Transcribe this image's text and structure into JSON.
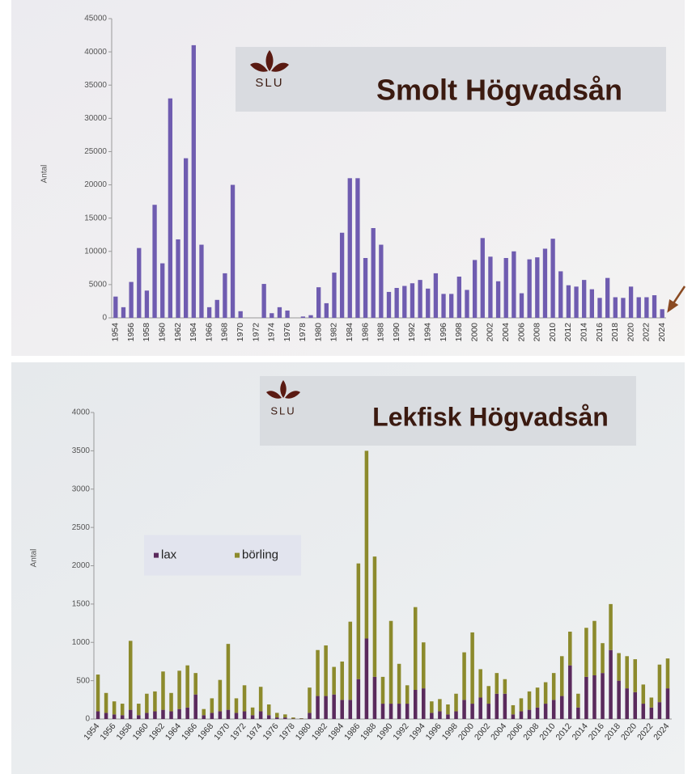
{
  "chart_data": [
    {
      "type": "bar",
      "title": "Smolt Högvadsån",
      "logo": "SLU",
      "ylabel": "Antal",
      "color": "#6f5cb0",
      "categories": [
        "1954",
        null,
        "1956",
        null,
        "1958",
        null,
        "1960",
        null,
        "1962",
        null,
        "1964",
        null,
        "1966",
        null,
        "1968",
        null,
        "1970",
        null,
        "1972",
        null,
        "1974",
        null,
        "1976",
        null,
        "1978",
        null,
        "1980",
        null,
        "1982",
        null,
        "1984",
        null,
        "1986",
        null,
        "1988",
        null,
        "1990",
        null,
        "1992",
        null,
        "1994",
        null,
        "1996",
        null,
        "1998",
        null,
        "2000",
        null,
        "2002",
        null,
        "2004",
        null,
        "2006",
        null,
        "2008",
        null,
        "2010",
        null,
        "2012",
        null,
        "2014",
        null,
        "2016",
        null,
        "2018",
        null,
        "2020",
        null,
        "2022",
        null,
        "2024"
      ],
      "values": [
        3200,
        1600,
        5400,
        10500,
        4100,
        17000,
        8200,
        33000,
        11800,
        24000,
        41000,
        11000,
        1600,
        2700,
        6700,
        20000,
        1000,
        0,
        0,
        5100,
        700,
        1600,
        1100,
        0,
        200,
        400,
        4600,
        2200,
        6800,
        12800,
        21000,
        21000,
        9000,
        13500,
        11000,
        3900,
        4500,
        4800,
        5200,
        5700,
        4400,
        6700,
        3600,
        3600,
        6200,
        4200,
        8700,
        12000,
        9200,
        5500,
        9000,
        10000,
        3700,
        8800,
        9100,
        10400,
        11900,
        7000,
        4900,
        4700,
        5700,
        4300,
        3000,
        6000,
        3100,
        3000,
        4700,
        3100,
        3100,
        3400,
        1300
      ],
      "ylim": [
        0,
        45000
      ],
      "yticks": [
        0,
        5000,
        10000,
        15000,
        20000,
        25000,
        30000,
        35000,
        40000,
        45000
      ]
    },
    {
      "type": "bar",
      "stacked": true,
      "title": "Lekfisk Högvadsån",
      "logo": "SLU",
      "ylabel": "Antal",
      "legend": "center left",
      "categories": [
        "1954",
        null,
        "1956",
        null,
        "1958",
        null,
        "1960",
        null,
        "1962",
        null,
        "1964",
        null,
        "1966",
        null,
        "1968",
        null,
        "1970",
        null,
        "1972",
        null,
        "1974",
        null,
        "1976",
        null,
        "1978",
        null,
        "1980",
        null,
        "1982",
        null,
        "1984",
        null,
        "1986",
        null,
        "1988",
        null,
        "1990",
        null,
        "1992",
        null,
        "1994",
        null,
        "1996",
        null,
        "1998",
        null,
        "2000",
        null,
        "2002",
        null,
        "2004",
        null,
        "2006",
        null,
        "2008",
        null,
        "2010",
        null,
        "2012",
        null,
        "2014",
        null,
        "2016",
        null,
        "2018",
        null,
        "2020",
        null,
        "2022",
        null,
        "2024"
      ],
      "series": [
        {
          "name": "lax",
          "color": "#5a2a5c",
          "values": [
            100,
            80,
            60,
            50,
            120,
            50,
            80,
            100,
            120,
            100,
            130,
            150,
            320,
            50,
            80,
            100,
            120,
            80,
            100,
            50,
            100,
            50,
            20,
            20,
            5,
            5,
            80,
            300,
            300,
            320,
            250,
            250,
            520,
            1050,
            550,
            200,
            200,
            200,
            200,
            380,
            400,
            80,
            100,
            60,
            100,
            250,
            200,
            280,
            200,
            330,
            330,
            60,
            100,
            120,
            150,
            200,
            250,
            300,
            700,
            150,
            550,
            570,
            600,
            900,
            500,
            400,
            350,
            200,
            150,
            220,
            400
          ]
        },
        {
          "name": "börling",
          "color": "#8c8a2c",
          "values": [
            480,
            260,
            170,
            150,
            900,
            150,
            250,
            260,
            500,
            240,
            500,
            550,
            280,
            80,
            190,
            410,
            860,
            190,
            340,
            100,
            320,
            140,
            60,
            40,
            15,
            5,
            330,
            600,
            660,
            360,
            500,
            1020,
            1510,
            2450,
            1570,
            350,
            1080,
            520,
            240,
            1080,
            600,
            150,
            160,
            130,
            230,
            620,
            930,
            370,
            230,
            270,
            190,
            120,
            170,
            240,
            260,
            280,
            350,
            520,
            440,
            180,
            640,
            710,
            390,
            600,
            360,
            420,
            430,
            250,
            130,
            490,
            390
          ]
        }
      ],
      "ylim": [
        0,
        4000
      ],
      "yticks": [
        0,
        500,
        1000,
        1500,
        2000,
        2500,
        3000,
        3500,
        4000
      ]
    }
  ]
}
